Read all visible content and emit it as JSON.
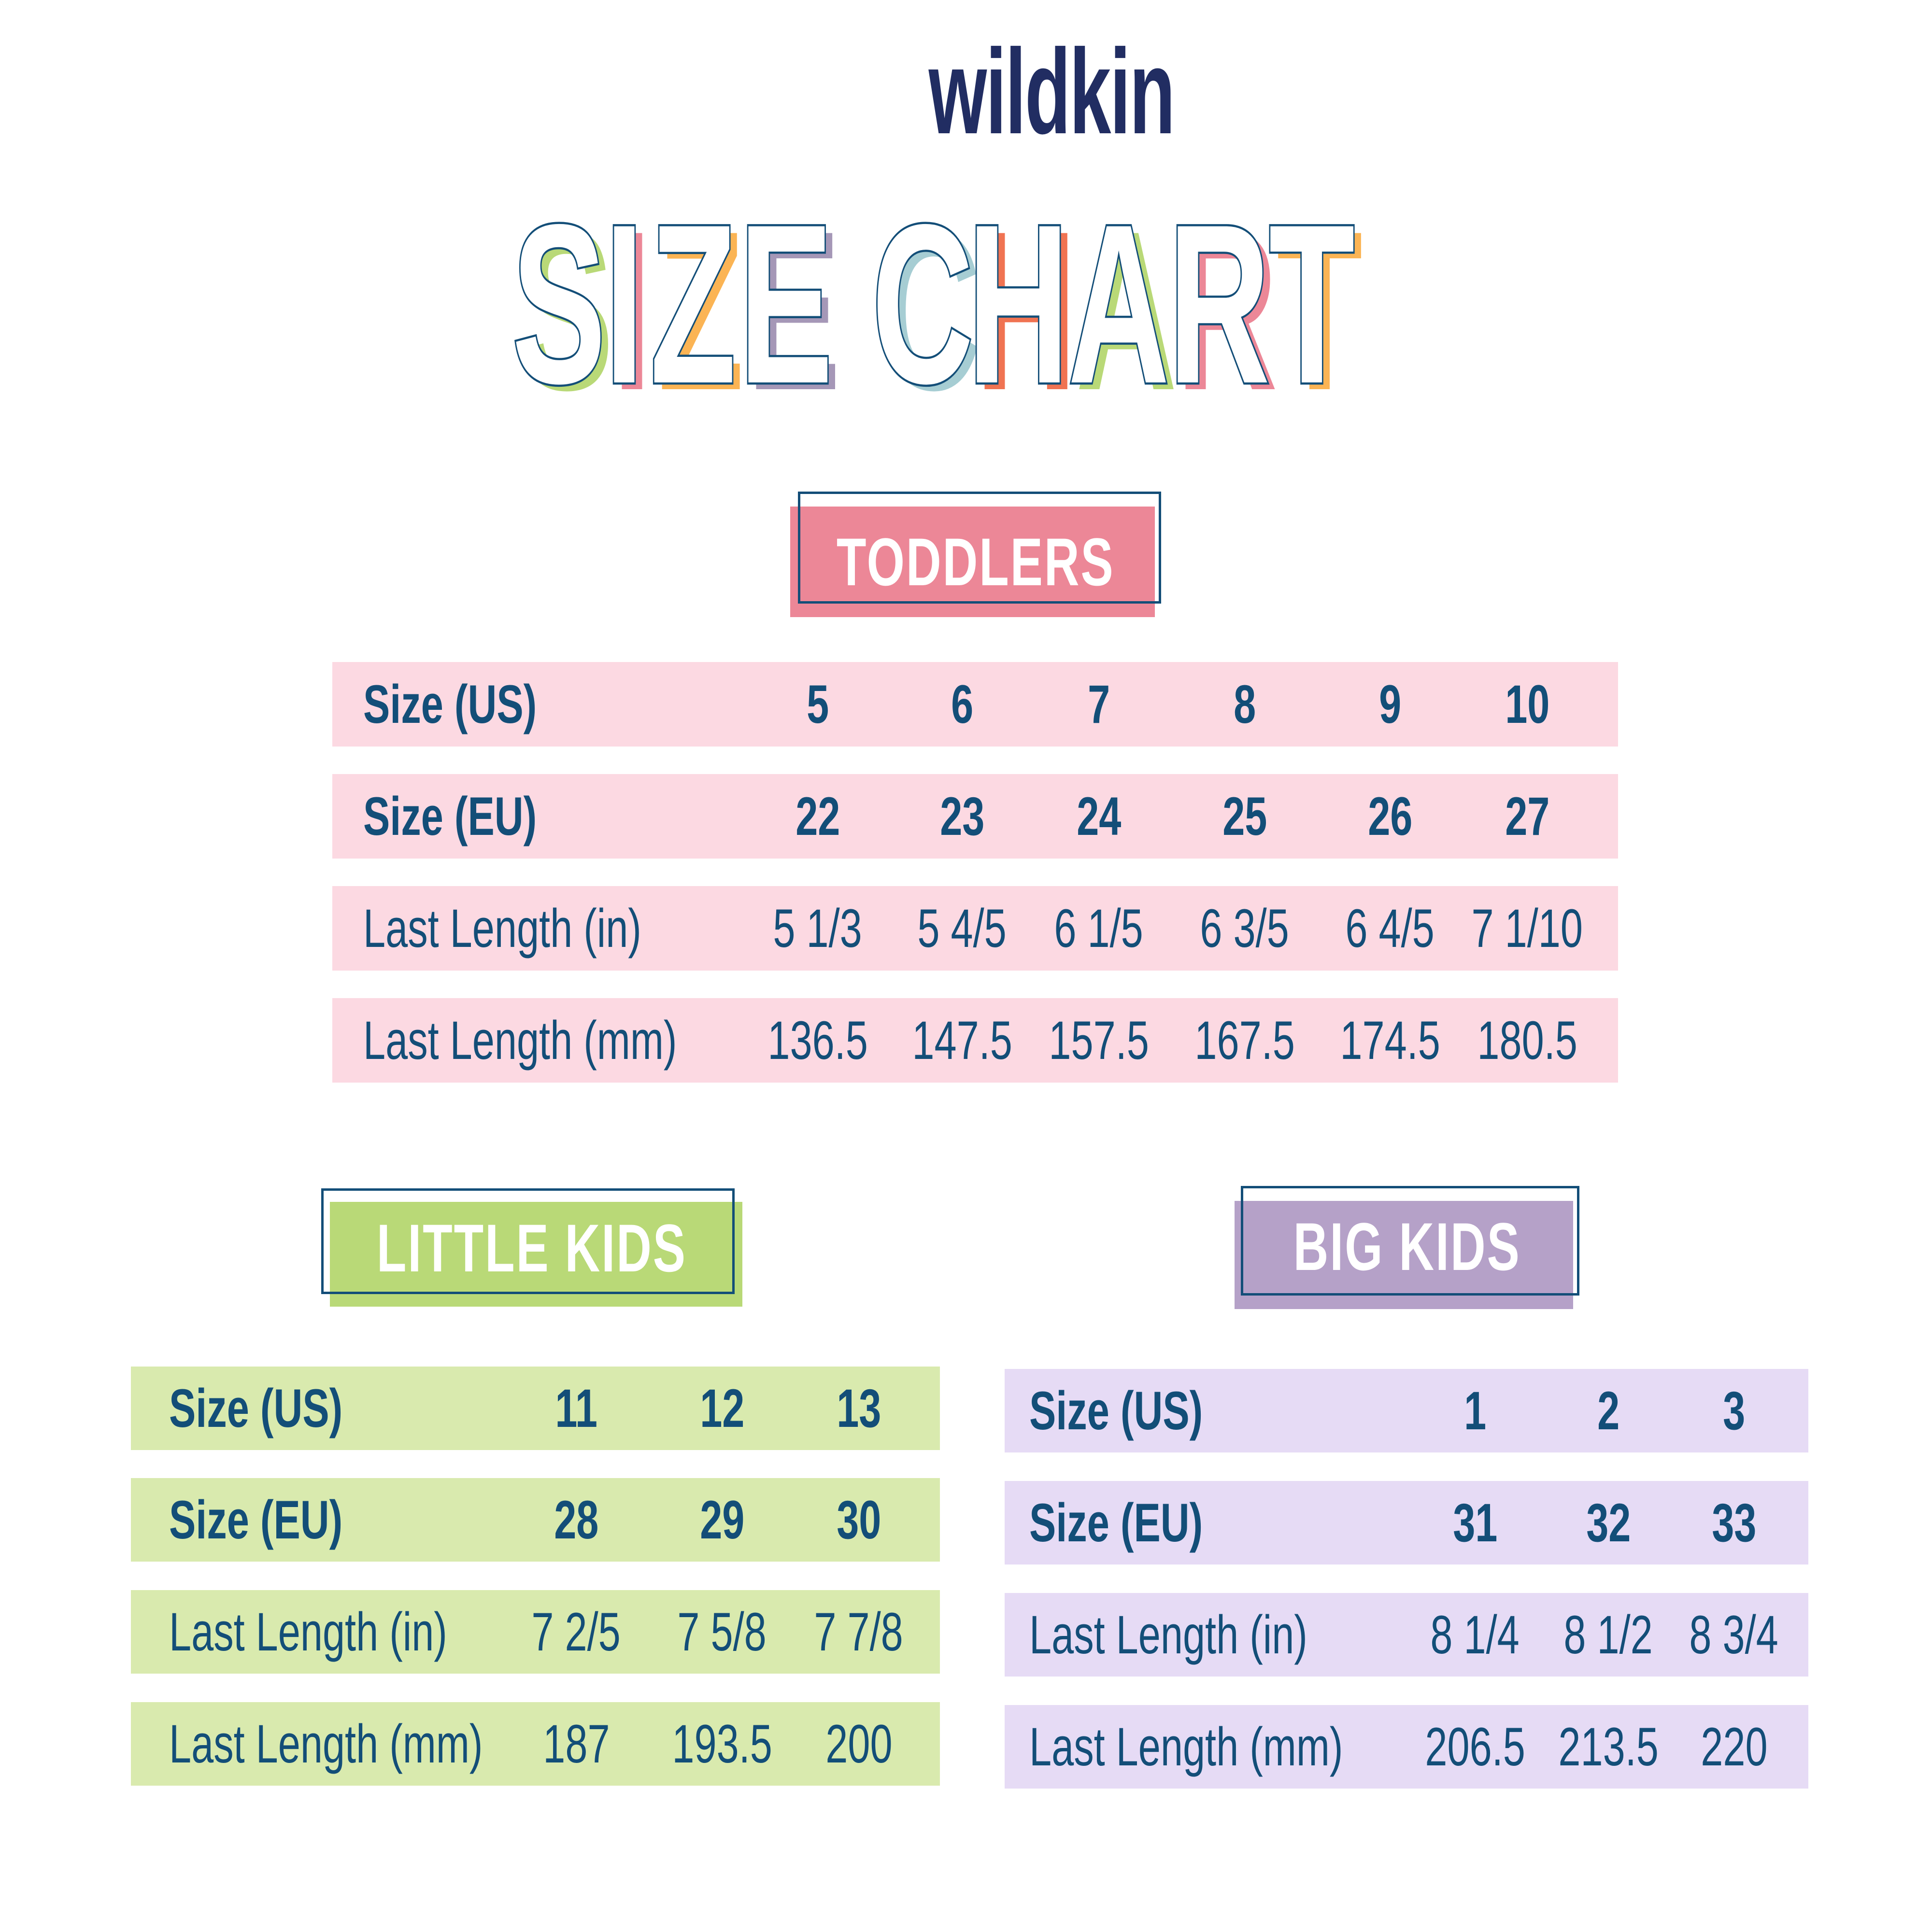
{
  "brand": {
    "logo_text": "wildkin",
    "logo_color": "#212d62"
  },
  "title": {
    "text": "SIZE CHART",
    "stroke_color": "#134e78",
    "letters": [
      {
        "char": "S",
        "color": "#b9d977"
      },
      {
        "char": "I",
        "color": "#ec8797"
      },
      {
        "char": "Z",
        "color": "#fbb454"
      },
      {
        "char": "E",
        "color": "#a597b7"
      },
      {
        "char": " ",
        "color": ""
      },
      {
        "char": "C",
        "color": "#a6cdd3"
      },
      {
        "char": "H",
        "color": "#f07352"
      },
      {
        "char": "A",
        "color": "#b9d977"
      },
      {
        "char": "R",
        "color": "#ec8797"
      },
      {
        "char": "T",
        "color": "#fbb454"
      }
    ]
  },
  "colors": {
    "text_navy": "#134e78",
    "toddlers_label": "#ec8797",
    "toddlers_row": "#fcd9e2",
    "little_kids_label": "#b9d977",
    "little_kids_row": "#d9eaae",
    "big_kids_label": "#b5a1c8",
    "big_kids_row": "#e6dbf5"
  },
  "sections": {
    "toddlers": {
      "label": "TODDLERS",
      "rows": [
        {
          "label": "Size (US)",
          "bold": true,
          "values": [
            "5",
            "6",
            "7",
            "8",
            "9",
            "10"
          ]
        },
        {
          "label": "Size (EU)",
          "bold": true,
          "values": [
            "22",
            "23",
            "24",
            "25",
            "26",
            "27"
          ]
        },
        {
          "label": "Last Length (in)",
          "bold": false,
          "values": [
            "5 1/3",
            "5 4/5",
            "6 1/5",
            "6 3/5",
            "6 4/5",
            "7 1/10"
          ]
        },
        {
          "label": "Last Length (mm)",
          "bold": false,
          "values": [
            "136.5",
            "147.5",
            "157.5",
            "167.5",
            "174.5",
            "180.5"
          ]
        }
      ]
    },
    "little_kids": {
      "label": "LITTLE KIDS",
      "rows": [
        {
          "label": "Size (US)",
          "bold": true,
          "values": [
            "11",
            "12",
            "13"
          ]
        },
        {
          "label": "Size (EU)",
          "bold": true,
          "values": [
            "28",
            "29",
            "30"
          ]
        },
        {
          "label": "Last Length (in)",
          "bold": false,
          "values": [
            "7 2/5",
            "7 5/8",
            "7 7/8"
          ]
        },
        {
          "label": "Last Length (mm)",
          "bold": false,
          "values": [
            "187",
            "193.5",
            "200"
          ]
        }
      ]
    },
    "big_kids": {
      "label": "BIG KIDS",
      "rows": [
        {
          "label": "Size (US)",
          "bold": true,
          "values": [
            "1",
            "2",
            "3"
          ]
        },
        {
          "label": "Size (EU)",
          "bold": true,
          "values": [
            "31",
            "32",
            "33"
          ]
        },
        {
          "label": "Last Length (in)",
          "bold": false,
          "values": [
            "8 1/4",
            "8 1/2",
            "8 3/4"
          ]
        },
        {
          "label": "Last Length (mm)",
          "bold": false,
          "values": [
            "206.5",
            "213.5",
            "220"
          ]
        }
      ]
    }
  },
  "chart_data": {
    "type": "table",
    "title": "SIZE CHART",
    "tables": [
      {
        "name": "TODDLERS",
        "columns": [
          "Size (US)",
          "Size (EU)",
          "Last Length (in)",
          "Last Length (mm)"
        ],
        "rows": [
          [
            "5",
            "22",
            "5 1/3",
            "136.5"
          ],
          [
            "6",
            "23",
            "5 4/5",
            "147.5"
          ],
          [
            "7",
            "24",
            "6 1/5",
            "157.5"
          ],
          [
            "8",
            "25",
            "6 3/5",
            "167.5"
          ],
          [
            "9",
            "26",
            "6 4/5",
            "174.5"
          ],
          [
            "10",
            "27",
            "7 1/10",
            "180.5"
          ]
        ]
      },
      {
        "name": "LITTLE KIDS",
        "columns": [
          "Size (US)",
          "Size (EU)",
          "Last Length (in)",
          "Last Length (mm)"
        ],
        "rows": [
          [
            "11",
            "28",
            "7 2/5",
            "187"
          ],
          [
            "12",
            "29",
            "7 5/8",
            "193.5"
          ],
          [
            "13",
            "30",
            "7 7/8",
            "200"
          ]
        ]
      },
      {
        "name": "BIG KIDS",
        "columns": [
          "Size (US)",
          "Size (EU)",
          "Last Length (in)",
          "Last Length (mm)"
        ],
        "rows": [
          [
            "1",
            "31",
            "8 1/4",
            "206.5"
          ],
          [
            "2",
            "32",
            "8 1/2",
            "213.5"
          ],
          [
            "3",
            "33",
            "8 3/4",
            "220"
          ]
        ]
      }
    ]
  }
}
